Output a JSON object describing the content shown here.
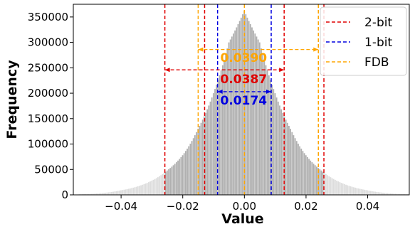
{
  "chart_data": {
    "type": "bar",
    "title": "",
    "xlabel": "Value",
    "ylabel": "Frequency",
    "xlim": [
      -0.0555,
      0.0535
    ],
    "ylim": [
      0,
      375000
    ],
    "xticks": [
      -0.04,
      -0.02,
      0.0,
      0.02,
      0.04
    ],
    "xtick_labels": [
      "−0.04",
      "−0.02",
      "0.00",
      "0.02",
      "0.04"
    ],
    "yticks": [
      0,
      50000,
      100000,
      150000,
      200000,
      250000,
      300000,
      350000
    ],
    "ytick_labels": [
      "0",
      "50000",
      "100000",
      "150000",
      "200000",
      "250000",
      "300000",
      "350000"
    ],
    "histogram": {
      "bin_width": 0.0005,
      "peak_center": 0.0,
      "peak_value": 362000,
      "approx_counts_at": [
        {
          "x": 0.0,
          "y": 362000
        },
        {
          "x": 0.005,
          "y": 300000
        },
        {
          "x": 0.01,
          "y": 200000
        },
        {
          "x": 0.015,
          "y": 130000
        },
        {
          "x": 0.02,
          "y": 78000
        },
        {
          "x": 0.025,
          "y": 48000
        },
        {
          "x": 0.03,
          "y": 28000
        },
        {
          "x": 0.04,
          "y": 9000
        },
        {
          "x": 0.05,
          "y": 2000
        }
      ]
    },
    "bar_colors": {
      "inner": "#b0b0b0",
      "outer": "#dddddd"
    },
    "legend_position": "top-right",
    "series": [
      {
        "name": "2-bit",
        "color": "#e00000",
        "lines": [
          -0.0258,
          -0.0129,
          0.0129,
          0.0258
        ],
        "arrow": [
          -0.0258,
          0.0129
        ],
        "label": "0.0387",
        "label_y": 220000,
        "arrow_y": 246000
      },
      {
        "name": "1-bit",
        "color": "#0000e0",
        "lines": [
          -0.0087,
          0.0087
        ],
        "arrow": [
          -0.0087,
          0.0087
        ],
        "label": "0.0174",
        "label_y": 178000,
        "arrow_y": 203000
      },
      {
        "name": "FDB",
        "color": "#ffa500",
        "lines": [
          -0.015,
          0.0,
          0.024
        ],
        "arrow": [
          -0.015,
          0.024
        ],
        "label": "0.0390",
        "label_y": 262000,
        "arrow_y": 286000
      }
    ]
  }
}
